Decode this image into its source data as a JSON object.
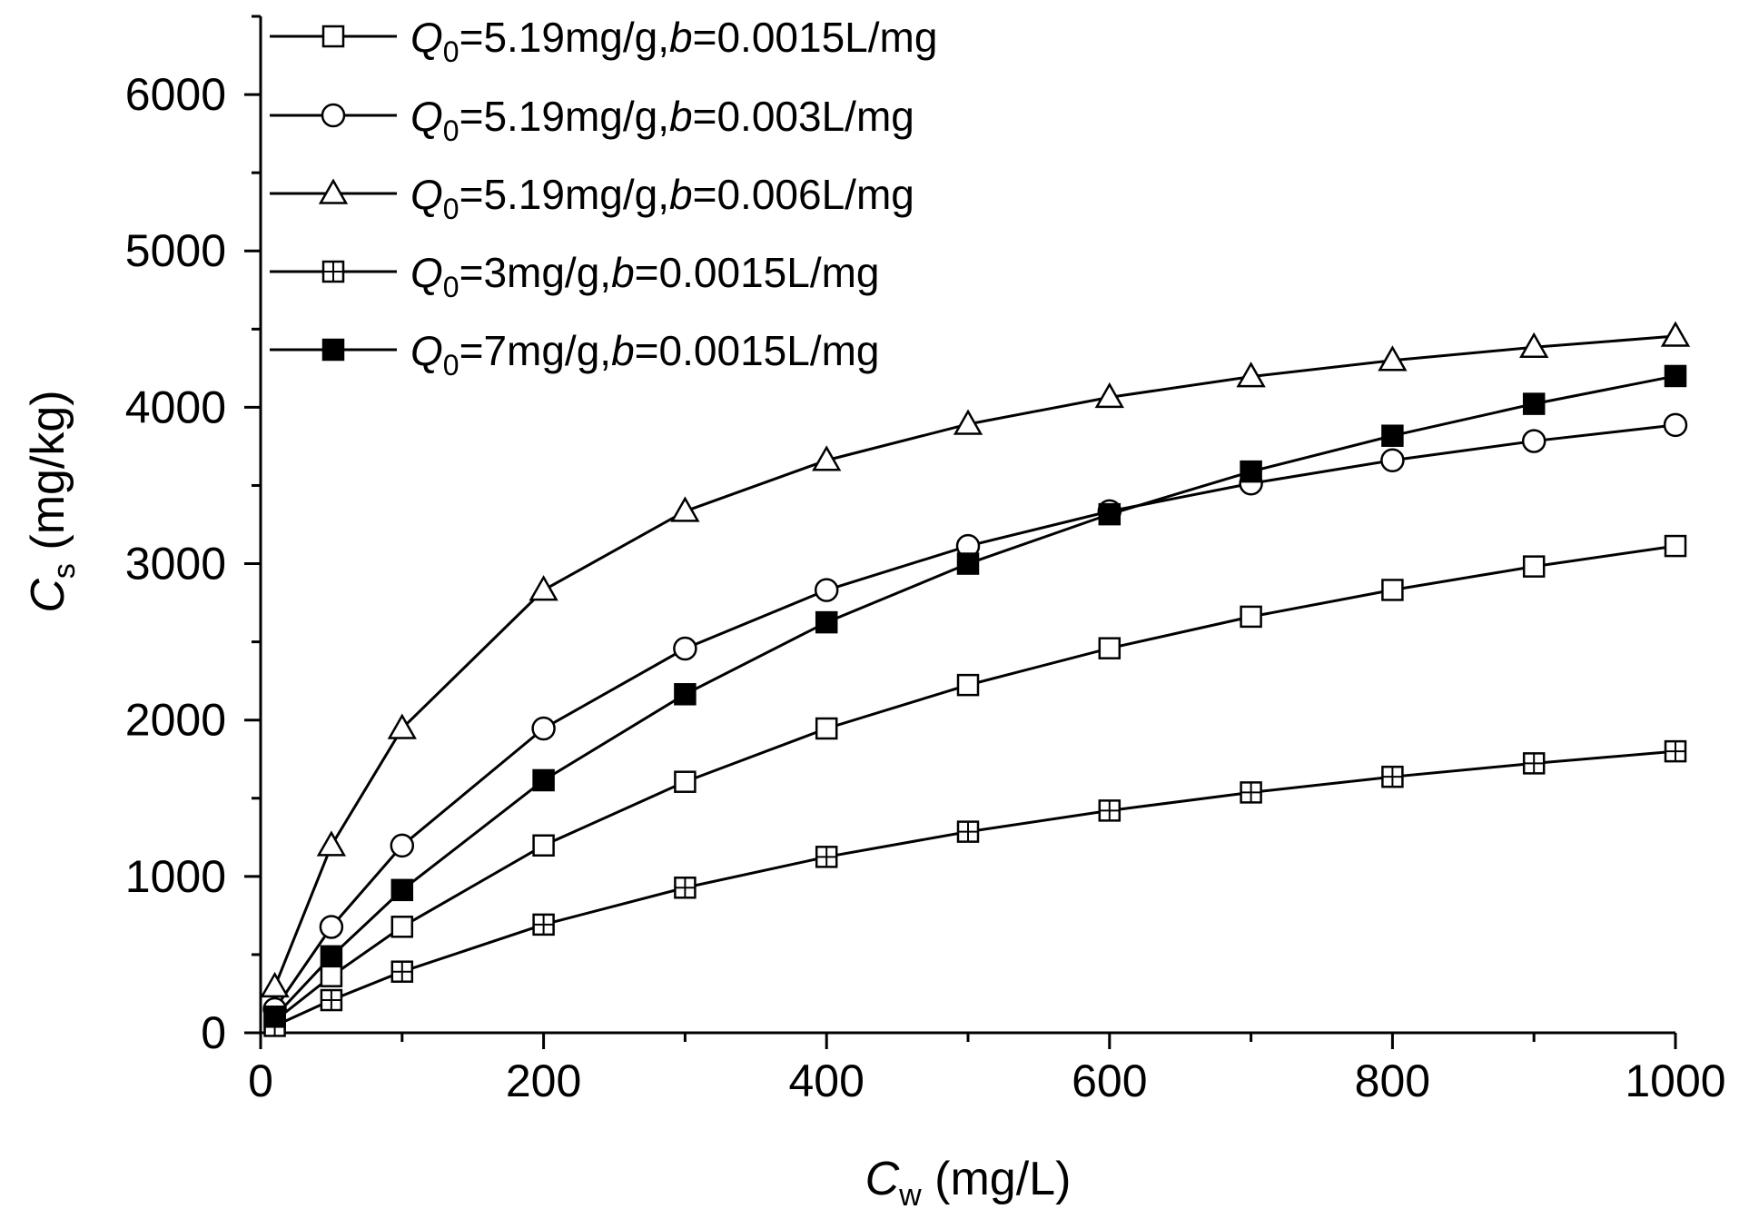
{
  "chart_data": {
    "type": "line",
    "title": "",
    "xlabel": {
      "main": "C",
      "sub": "w",
      "unit": " (mg/L)"
    },
    "ylabel": {
      "main": "C",
      "sub": "s",
      "unit": " (mg/kg)"
    },
    "xlim": [
      0,
      1000
    ],
    "ylim": [
      0,
      6500
    ],
    "x_ticks": [
      0,
      200,
      400,
      600,
      800,
      1000
    ],
    "y_ticks": [
      0,
      1000,
      2000,
      3000,
      4000,
      5000,
      6000
    ],
    "x_tick_labels": [
      "0",
      "200",
      "400",
      "600",
      "800",
      "1000"
    ],
    "y_tick_labels": [
      "0",
      "1000",
      "2000",
      "3000",
      "4000",
      "5000",
      "6000"
    ],
    "grid": false,
    "legend_position": "top-left",
    "x": [
      10,
      50,
      100,
      200,
      300,
      400,
      500,
      600,
      700,
      800,
      900,
      1000
    ],
    "series": [
      {
        "name": "Q0=5.19mg/g,b=0.0015L/mg",
        "marker": "open-square",
        "legend": {
          "q": "Q",
          "sub": "0",
          "mid": "=5.19mg/g,",
          "b": "b",
          "rest": "=0.0015L/mg"
        },
        "values": [
          77,
          362,
          678,
          1198,
          1605,
          1946,
          2224,
          2459,
          2661,
          2832,
          2982,
          3113
        ]
      },
      {
        "name": "Q0=5.19mg/g,b=0.003L/mg",
        "marker": "open-circle",
        "legend": {
          "q": "Q",
          "sub": "0",
          "mid": "=5.19mg/g,",
          "b": "b",
          "rest": "=0.003L/mg"
        },
        "values": [
          151,
          677,
          1197,
          1946,
          2457,
          2831,
          3113,
          3335,
          3513,
          3661,
          3784,
          3887
        ]
      },
      {
        "name": "Q0=5.19mg/g,b=0.006L/mg",
        "marker": "open-triangle",
        "legend": {
          "q": "Q",
          "sub": "0",
          "mid": "=5.19mg/g,",
          "b": "b",
          "rest": "=0.006L/mg"
        },
        "values": [
          294,
          1197,
          1946,
          2831,
          3335,
          3661,
          3892,
          4064,
          4196,
          4300,
          4384,
          4455
        ]
      },
      {
        "name": "Q0=3mg/g,b=0.0015L/mg",
        "marker": "crossed-square",
        "legend": {
          "q": "Q",
          "sub": "0",
          "mid": "=3mg/g,",
          "b": "b",
          "rest": "=0.0015L/mg"
        },
        "values": [
          44,
          209,
          391,
          692,
          928,
          1125,
          1286,
          1421,
          1537,
          1637,
          1723,
          1800
        ]
      },
      {
        "name": "Q0=7mg/g,b=0.0015L/mg",
        "marker": "filled-square",
        "legend": {
          "q": "Q",
          "sub": "0",
          "mid": "=7mg/g,",
          "b": "b",
          "rest": "=0.0015L/mg"
        },
        "values": [
          103,
          489,
          913,
          1615,
          2165,
          2625,
          3000,
          3316,
          3589,
          3818,
          4022,
          4200
        ]
      }
    ]
  }
}
